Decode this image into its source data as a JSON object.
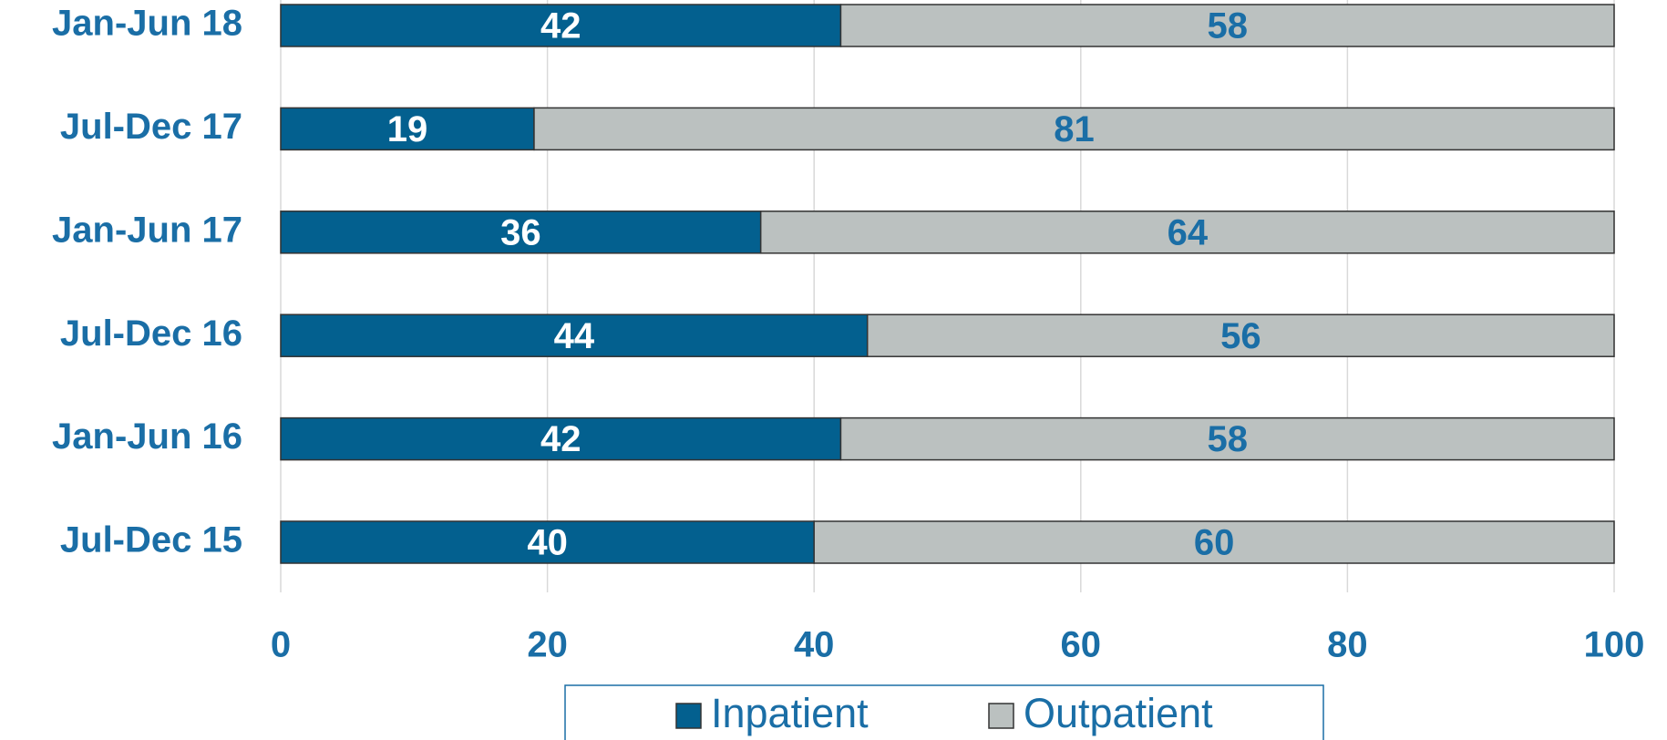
{
  "chart_data": {
    "type": "stacked_barh",
    "categories": [
      "Jan-Jun 18",
      "Jul-Dec 17",
      "Jan-Jun 17",
      "Jul-Dec 16",
      "Jan-Jun 16",
      "Jul-Dec 15"
    ],
    "series": [
      {
        "name": "Inpatient",
        "color": "#03608f",
        "label_color": "#ffffff",
        "values": [
          42,
          19,
          36,
          44,
          42,
          40
        ]
      },
      {
        "name": "Outpatient",
        "color": "#bbc1c0",
        "label_color": "#1a6ea6",
        "values": [
          58,
          81,
          64,
          56,
          58,
          60
        ]
      }
    ],
    "xlim": [
      0,
      100
    ],
    "xticks": [
      0,
      20,
      40,
      60,
      80,
      100
    ],
    "grid": true,
    "legend": "bottom"
  }
}
